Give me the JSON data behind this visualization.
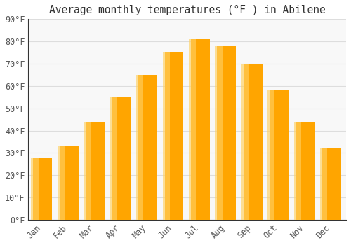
{
  "title": "Average monthly temperatures (°F ) in Abilene",
  "months": [
    "Jan",
    "Feb",
    "Mar",
    "Apr",
    "May",
    "Jun",
    "Jul",
    "Aug",
    "Sep",
    "Oct",
    "Nov",
    "Dec"
  ],
  "values": [
    28,
    33,
    44,
    55,
    65,
    75,
    81,
    78,
    70,
    58,
    44,
    32
  ],
  "bar_color_main": "#FFA500",
  "bar_color_light": "#FFD060",
  "bar_color_edge": "#E08800",
  "background_color": "#FFFFFF",
  "plot_bg_color": "#F8F8F8",
  "grid_color": "#DDDDDD",
  "text_color": "#555555",
  "title_color": "#333333",
  "axis_color": "#333333",
  "ylim": [
    0,
    90
  ],
  "yticks": [
    0,
    10,
    20,
    30,
    40,
    50,
    60,
    70,
    80,
    90
  ],
  "ytick_labels": [
    "0°F",
    "10°F",
    "20°F",
    "30°F",
    "40°F",
    "50°F",
    "60°F",
    "70°F",
    "80°F",
    "90°F"
  ],
  "title_fontsize": 10.5,
  "tick_fontsize": 8.5,
  "font_family": "monospace",
  "bar_width": 0.72,
  "figwidth": 5.0,
  "figheight": 3.5,
  "dpi": 100
}
